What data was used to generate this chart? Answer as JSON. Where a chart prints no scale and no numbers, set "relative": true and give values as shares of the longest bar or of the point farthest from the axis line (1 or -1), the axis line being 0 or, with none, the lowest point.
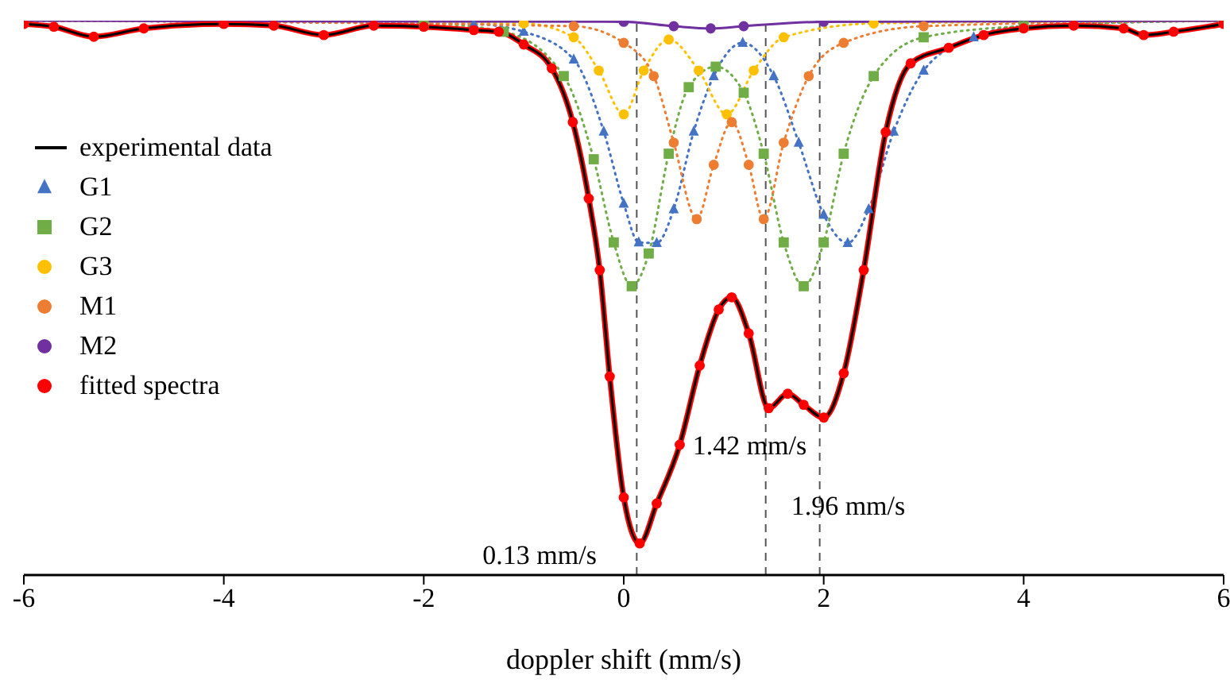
{
  "chart_data": {
    "type": "line",
    "relative": true,
    "xlabel": "doppler shift (mm/s)",
    "xlim": [
      -6,
      6
    ],
    "xticks": [
      -6,
      -4,
      -2,
      0,
      2,
      4,
      6
    ],
    "grid": false,
    "legend": "top left",
    "tick_labels": "x",
    "series": [
      {
        "name": "experimental data",
        "color": "#000000",
        "marker": "none",
        "line_style": "solid",
        "x": [
          -6,
          -5.7,
          -5.3,
          -4.8,
          -4,
          -3.5,
          -3,
          -2.5,
          -2,
          -1.5,
          -1.25,
          -1,
          -0.72,
          -0.51,
          -0.35,
          -0.24,
          -0.14,
          0,
          0.16,
          0.33,
          0.56,
          0.76,
          0.95,
          1.08,
          1.25,
          1.45,
          1.64,
          1.8,
          2,
          2.2,
          2.4,
          2.62,
          2.87,
          3.25,
          3.6,
          4,
          4.5,
          5,
          5.2,
          5.5,
          6
        ],
        "values": [
          0.994,
          0.989,
          0.971,
          0.986,
          0.994,
          0.991,
          0.974,
          0.991,
          0.989,
          0.983,
          0.98,
          0.957,
          0.914,
          0.817,
          0.679,
          0.55,
          0.358,
          0.14,
          0.057,
          0.129,
          0.235,
          0.378,
          0.479,
          0.501,
          0.436,
          0.301,
          0.327,
          0.307,
          0.284,
          0.364,
          0.55,
          0.799,
          0.923,
          0.951,
          0.974,
          0.986,
          0.991,
          0.986,
          0.974,
          0.98,
          0.994
        ]
      },
      {
        "name": "G1",
        "color": "#4472c4",
        "marker": "triangle",
        "line_style": "dotted",
        "x": [
          -6,
          -1.5,
          -1,
          -0.5,
          -0.2,
          0,
          0.15,
          0.33,
          0.5,
          0.7,
          0.9,
          1.19,
          1.5,
          1.75,
          2,
          2.24,
          2.45,
          2.7,
          3,
          3.5,
          4,
          6
        ],
        "values": [
          1,
          0.994,
          0.98,
          0.93,
          0.8,
          0.67,
          0.6,
          0.599,
          0.66,
          0.8,
          0.9,
          0.96,
          0.9,
          0.78,
          0.65,
          0.599,
          0.66,
          0.8,
          0.91,
          0.97,
          0.99,
          1
        ]
      },
      {
        "name": "G2",
        "color": "#70ad47",
        "marker": "square",
        "line_style": "dotted",
        "x": [
          -6,
          -2,
          -1.2,
          -0.6,
          -0.3,
          -0.1,
          0.08,
          0.25,
          0.45,
          0.65,
          0.92,
          1.2,
          1.4,
          1.6,
          1.8,
          2,
          2.2,
          2.5,
          3,
          4,
          6
        ],
        "values": [
          1,
          0.995,
          0.98,
          0.9,
          0.75,
          0.6,
          0.521,
          0.58,
          0.76,
          0.88,
          0.917,
          0.87,
          0.76,
          0.6,
          0.521,
          0.6,
          0.76,
          0.9,
          0.97,
          0.99,
          1
        ]
      },
      {
        "name": "G3",
        "color": "#ffc000",
        "marker": "circle",
        "line_style": "dotted",
        "x": [
          -6,
          -1,
          -0.5,
          -0.25,
          0,
          0.2,
          0.45,
          0.75,
          1.03,
          1.3,
          1.6,
          2.5,
          6
        ],
        "values": [
          1,
          0.995,
          0.97,
          0.91,
          0.831,
          0.91,
          0.966,
          0.91,
          0.831,
          0.91,
          0.97,
          0.995,
          1
        ]
      },
      {
        "name": "M1",
        "color": "#ed7d31",
        "marker": "circle",
        "line_style": "dotted",
        "x": [
          -6,
          -0.5,
          0,
          0.3,
          0.5,
          0.73,
          0.9,
          1.08,
          1.25,
          1.4,
          1.6,
          1.85,
          2.2,
          3,
          6
        ],
        "values": [
          1,
          0.99,
          0.96,
          0.9,
          0.78,
          0.642,
          0.74,
          0.817,
          0.74,
          0.642,
          0.78,
          0.9,
          0.96,
          0.99,
          1
        ]
      },
      {
        "name": "M2",
        "color": "#7030a0",
        "marker": "circle",
        "line_style": "solid",
        "x": [
          -6,
          0,
          0.5,
          0.87,
          1.2,
          2,
          6
        ],
        "values": [
          1,
          0.998,
          0.99,
          0.986,
          0.99,
          0.998,
          1
        ]
      },
      {
        "name": "fitted spectra",
        "color": "#ff0000",
        "marker": "circle",
        "line_style": "solid",
        "x": [
          -6,
          -5.7,
          -5.3,
          -4.8,
          -4,
          -3.5,
          -3,
          -2.5,
          -2,
          -1.5,
          -1.25,
          -1,
          -0.72,
          -0.51,
          -0.35,
          -0.24,
          -0.14,
          0,
          0.16,
          0.33,
          0.56,
          0.76,
          0.95,
          1.08,
          1.25,
          1.45,
          1.64,
          1.8,
          2,
          2.2,
          2.4,
          2.62,
          2.87,
          3.25,
          3.6,
          4,
          4.5,
          5,
          5.2,
          5.5,
          6
        ],
        "values": [
          0.994,
          0.989,
          0.971,
          0.986,
          0.994,
          0.991,
          0.974,
          0.991,
          0.989,
          0.983,
          0.98,
          0.957,
          0.914,
          0.817,
          0.679,
          0.55,
          0.358,
          0.14,
          0.057,
          0.129,
          0.235,
          0.378,
          0.479,
          0.501,
          0.436,
          0.301,
          0.327,
          0.307,
          0.284,
          0.364,
          0.55,
          0.799,
          0.923,
          0.951,
          0.974,
          0.986,
          0.991,
          0.986,
          0.974,
          0.98,
          0.994
        ]
      }
    ],
    "ref_lines": [
      {
        "axis": "x",
        "value": 0.13,
        "label": "0.13 mm/s",
        "color": "#555555",
        "line_style": "dashed"
      },
      {
        "axis": "x",
        "value": 1.42,
        "label": "1.42 mm/s",
        "color": "#555555",
        "line_style": "dashed"
      },
      {
        "axis": "x",
        "value": 1.96,
        "label": "1.96 mm/s",
        "color": "#555555",
        "line_style": "dashed"
      }
    ]
  }
}
